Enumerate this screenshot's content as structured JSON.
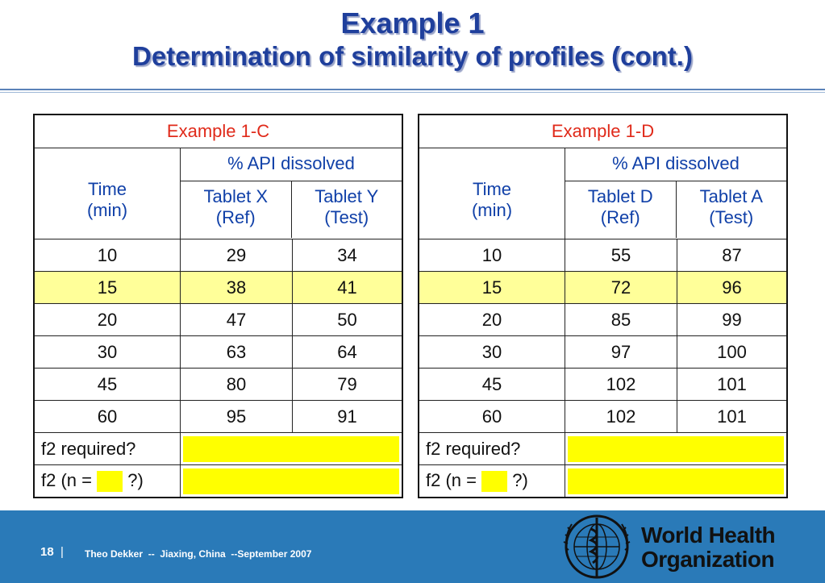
{
  "title": {
    "line1": "Example 1",
    "line2": "Determination of similarity of profiles (cont.)"
  },
  "tables": [
    {
      "header": "Example 1-C",
      "api_label": "% API dissolved",
      "col_time": [
        "Time",
        "(min)"
      ],
      "col_ref": [
        "Tablet X",
        "(Ref)"
      ],
      "col_test": [
        "Tablet Y",
        "(Test)"
      ],
      "rows": [
        [
          "10",
          "29",
          "34"
        ],
        [
          "15",
          "38",
          "41"
        ],
        [
          "20",
          "47",
          "50"
        ],
        [
          "30",
          "63",
          "64"
        ],
        [
          "45",
          "80",
          "79"
        ],
        [
          "60",
          "95",
          "91"
        ]
      ],
      "q1": "f2 required?",
      "q2_prefix": "f2 (n =",
      "q2_suffix": "?)"
    },
    {
      "header": "Example 1-D",
      "api_label": "% API dissolved",
      "col_time": [
        "Time",
        "(min)"
      ],
      "col_ref": [
        "Tablet D",
        "(Ref)"
      ],
      "col_test": [
        "Tablet A",
        "(Test)"
      ],
      "rows": [
        [
          "10",
          "55",
          "87"
        ],
        [
          "15",
          "72",
          "96"
        ],
        [
          "20",
          "85",
          "99"
        ],
        [
          "30",
          "97",
          "100"
        ],
        [
          "45",
          "102",
          "101"
        ],
        [
          "60",
          "102",
          "101"
        ]
      ],
      "q1": "f2 required?",
      "q2_prefix": "f2 (n =",
      "q2_suffix": "?)"
    }
  ],
  "footer": {
    "page": "18",
    "separator": "|",
    "note": "Theo Dekker  --  Jiaxing, China  --September 2007"
  },
  "logo": {
    "line1": "World Health",
    "line2": "Organization"
  },
  "colors": {
    "title": "#1f3f9c",
    "header": "#e02a1a",
    "column_text": "#1040a8",
    "highlight": "#ffff99",
    "answer_box": "#ffff00",
    "footer": "#2a7ab8"
  }
}
